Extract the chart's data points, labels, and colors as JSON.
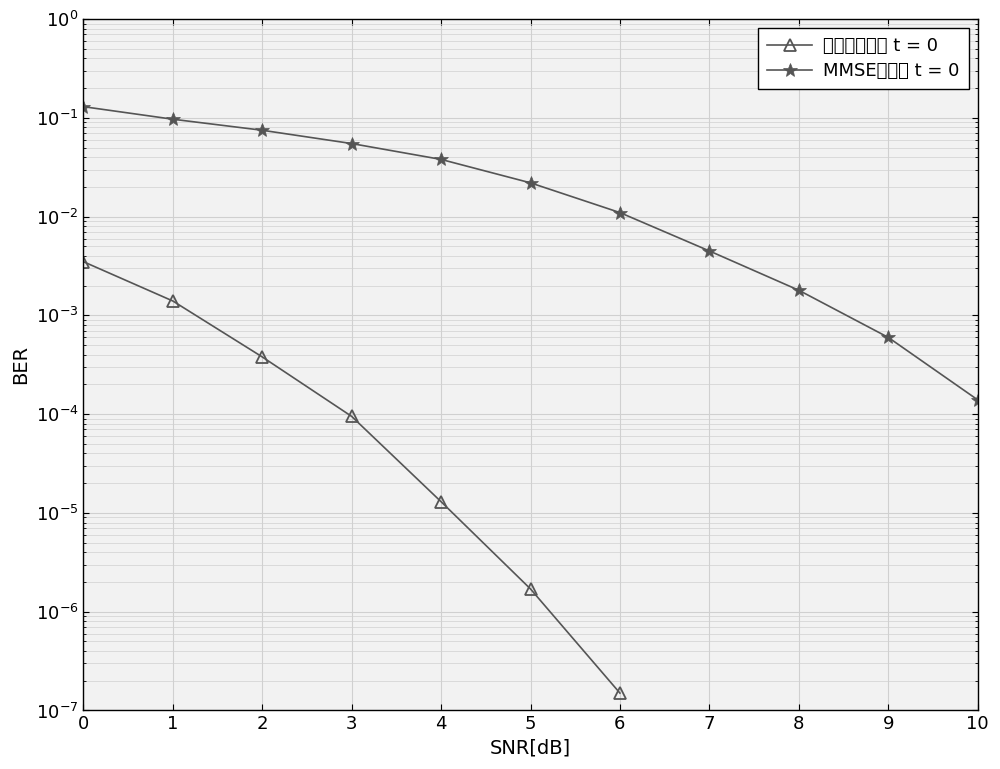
{
  "snr": [
    0,
    1,
    2,
    3,
    4,
    5,
    6,
    7,
    8,
    9,
    10
  ],
  "new_tech": [
    0.0035,
    0.0014,
    0.00038,
    9.5e-05,
    1.3e-05,
    1.7e-06,
    1.5e-07,
    null,
    null,
    null,
    null
  ],
  "mmse": [
    0.13,
    0.097,
    0.075,
    0.055,
    0.038,
    0.022,
    0.011,
    0.0045,
    0.0018,
    0.0006,
    0.00014
  ],
  "line_color": "#555555",
  "bg_color": "#f2f2f2",
  "xlabel": "SNR[dB]",
  "ylabel": "BER",
  "ylim_log_min": -7,
  "ylim_log_max": 0,
  "xlim_min": 0,
  "xlim_max": 10,
  "legend1": "新技术预编码 t = 0",
  "legend2": "MMSE预编码 t = 0",
  "grid_color": "#d0d0d0",
  "linewidth": 1.2,
  "markersize_tri": 9,
  "markersize_star": 10,
  "fontsize_tick": 13,
  "fontsize_label": 14,
  "fontsize_legend": 13
}
